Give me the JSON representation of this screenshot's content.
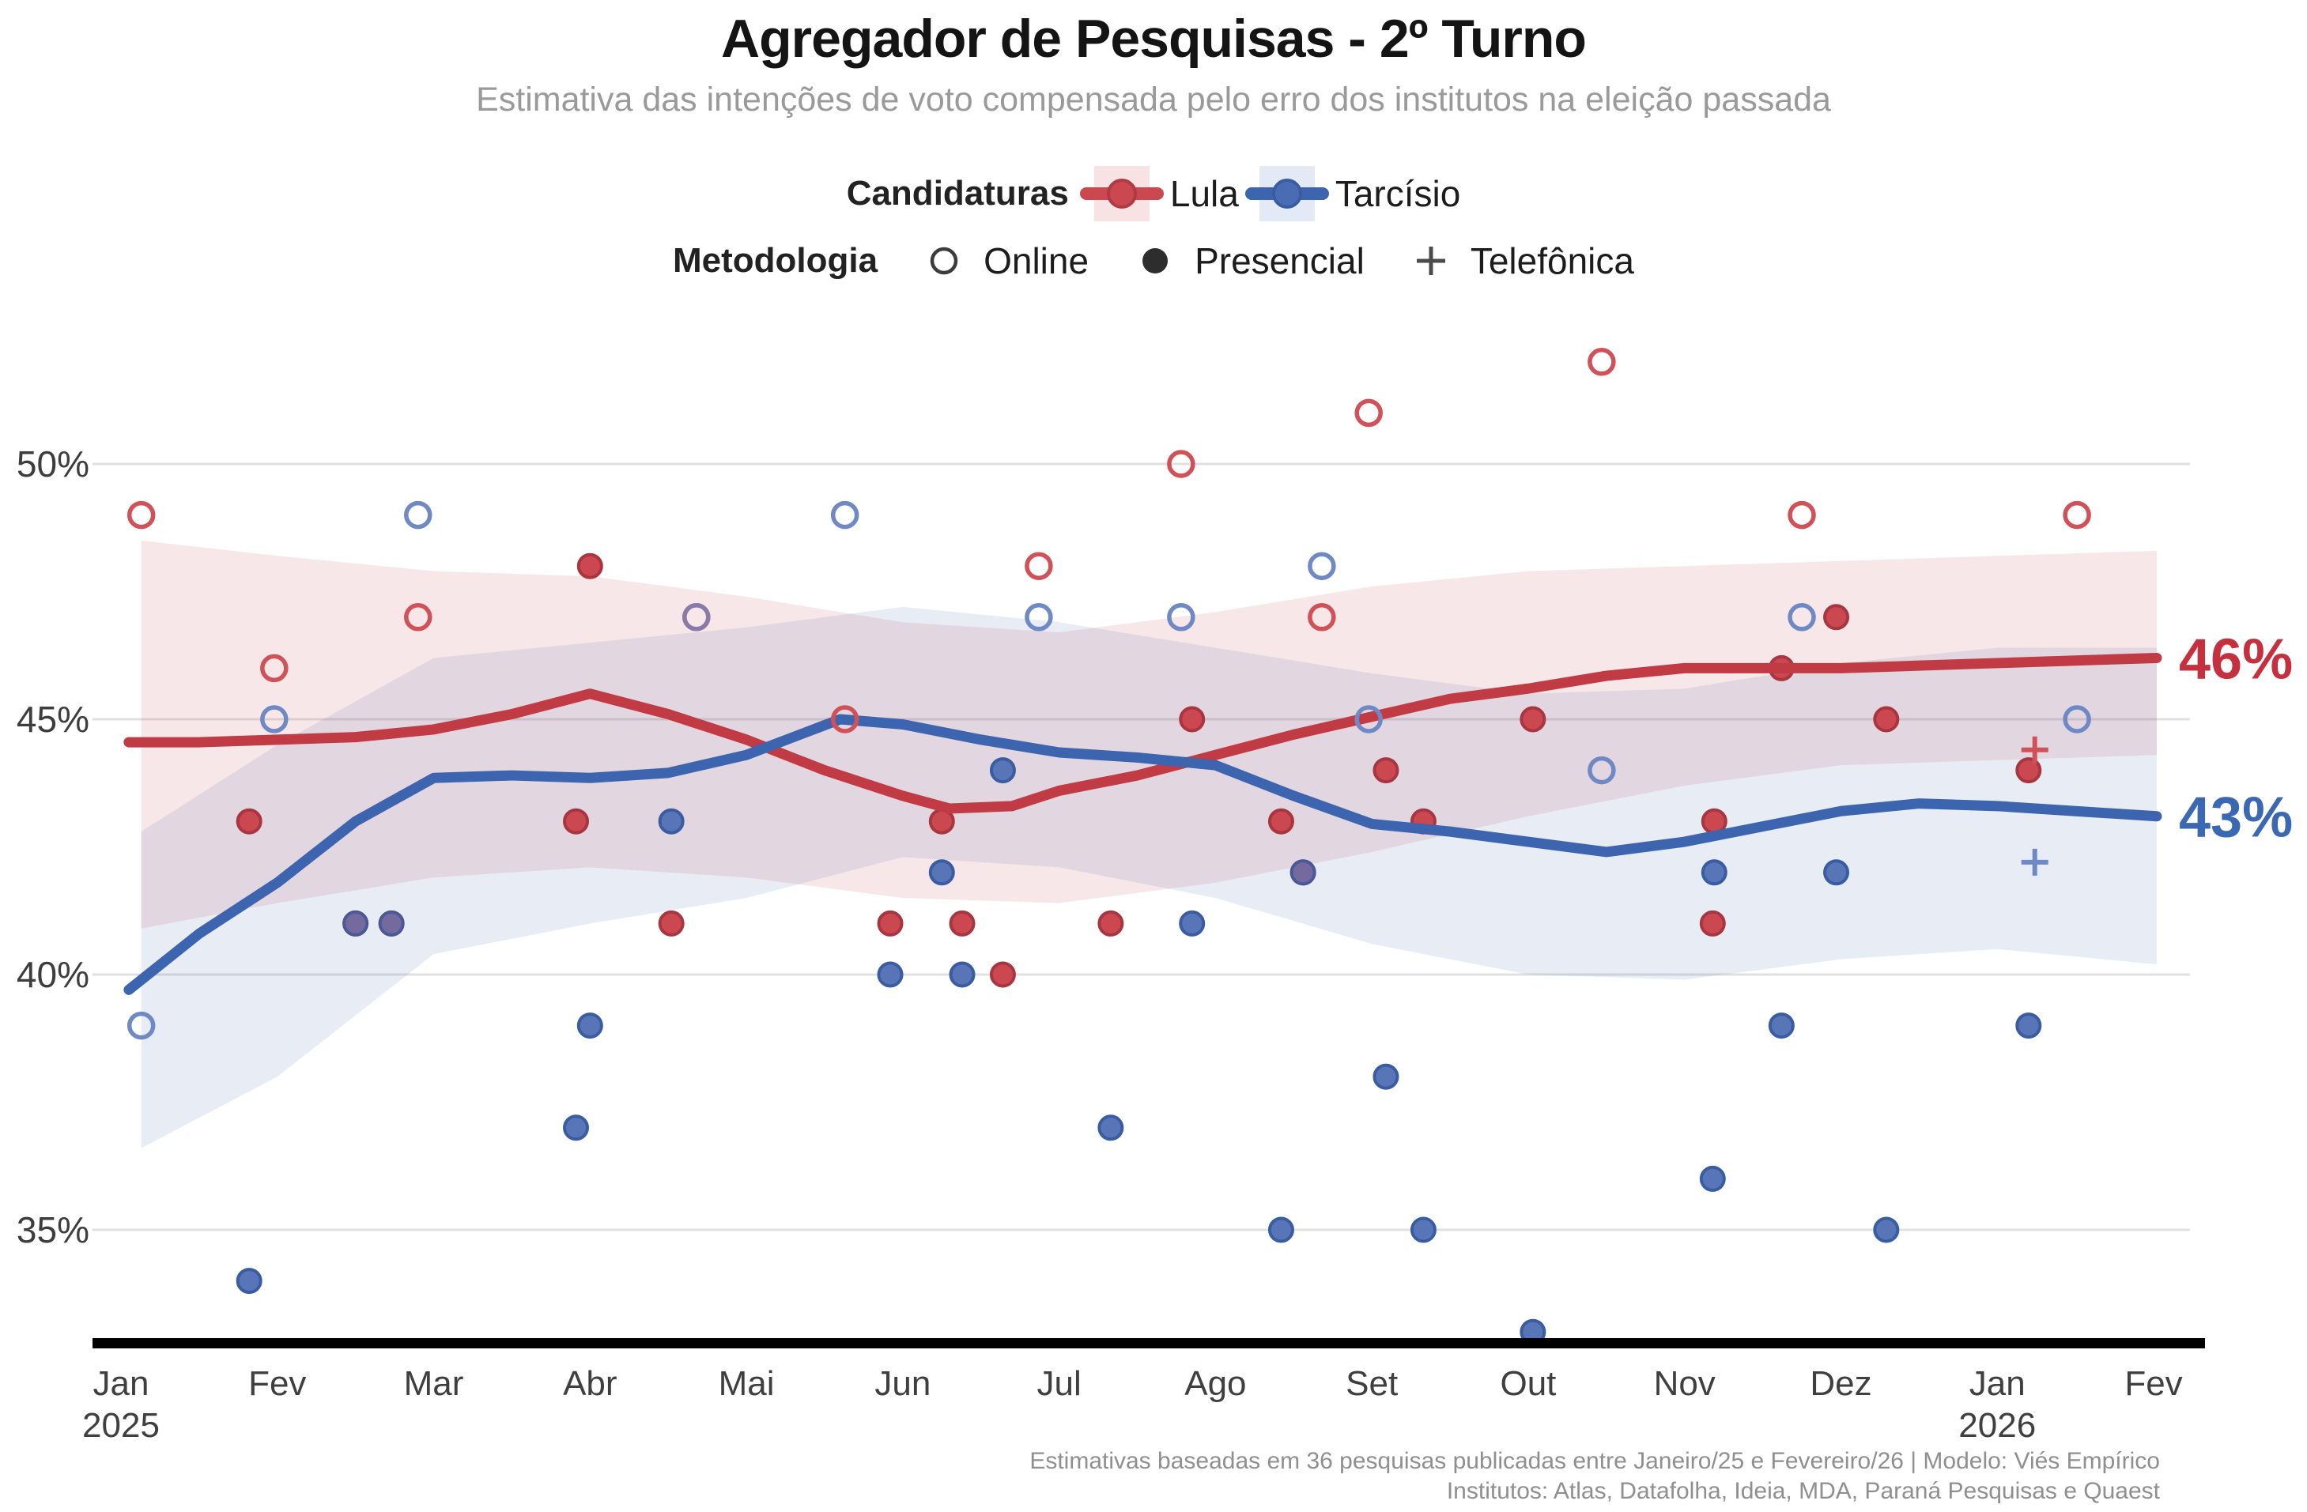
{
  "header": {
    "title": "Agregador de Pesquisas - 2º Turno",
    "subtitle": "Estimativa das intenções de voto compensada pelo erro dos institutos na eleição passada"
  },
  "legend": {
    "candidaturas_label": "Candidaturas",
    "candidates": [
      {
        "name": "Lula",
        "color": "#c13b44",
        "band": "#f8e3e4"
      },
      {
        "name": "Tarcísio",
        "color": "#3d64ae",
        "band": "#e4eaf5"
      }
    ],
    "metodologia_label": "Metodologia",
    "methods": [
      {
        "label": "Online",
        "marker": "open-circle"
      },
      {
        "label": "Presencial",
        "marker": "filled-circle"
      },
      {
        "label": "Telefônica",
        "marker": "plus"
      }
    ]
  },
  "footer": {
    "line1": "Estimativas baseadas em 36 pesquisas publicadas entre Janeiro/25 e Fevereiro/26 | Modelo: Viés Empírico",
    "line2": "Institutos: Atlas, Datafolha, Ideia, MDA, Paraná Pesquisas e Quaest"
  },
  "colors": {
    "grid": "#e0e0e0",
    "axis": "#000000",
    "tick_text": "#3d3d3d",
    "legend_icon": "#3c3c3c",
    "lula_line": "#c13b44",
    "lula_point_fill": "#cb4850",
    "lula_point_stroke": "#a83640",
    "lula_ring": "#d05158",
    "lula_band": "rgba(203,72,80,0.13)",
    "lula_label": "#c5303e",
    "tarcisio_line": "#3d64ae",
    "tarcisio_point_fill": "#5875b8",
    "tarcisio_point_stroke": "#3a5ca1",
    "tarcisio_ring": "#6e89c4",
    "tarcisio_band": "rgba(80,110,180,0.13)",
    "tarcisio_label": "#3a68b3"
  },
  "chart_data": {
    "type": "line+scatter",
    "title": "Agregador de Pesquisas - 2º Turno",
    "x_unit": "months since Jan/2025 (0 = Jan 2025, 13 = Fev 2026)",
    "x_ticks": [
      {
        "label": "Jan",
        "year": "2025"
      },
      {
        "label": "Fev"
      },
      {
        "label": "Mar"
      },
      {
        "label": "Abr"
      },
      {
        "label": "Mai"
      },
      {
        "label": "Jun"
      },
      {
        "label": "Jul"
      },
      {
        "label": "Ago"
      },
      {
        "label": "Set"
      },
      {
        "label": "Out"
      },
      {
        "label": "Nov"
      },
      {
        "label": "Dez"
      },
      {
        "label": "Jan",
        "year": "2026"
      },
      {
        "label": "Fev"
      }
    ],
    "y_ticks": [
      {
        "value": 50,
        "label": "50%"
      },
      {
        "value": 45,
        "label": "45%"
      },
      {
        "value": 40,
        "label": "40%"
      },
      {
        "value": 35,
        "label": "35%"
      }
    ],
    "ylim": [
      32.5,
      52.8
    ],
    "grid": true,
    "series": [
      {
        "name": "Lula",
        "end_label": "46%",
        "end_value": 46,
        "trend": [
          [
            0.05,
            44.55
          ],
          [
            0.5,
            44.55
          ],
          [
            1,
            44.6
          ],
          [
            1.5,
            44.65
          ],
          [
            2,
            44.8
          ],
          [
            2.5,
            45.1
          ],
          [
            3,
            45.5
          ],
          [
            3.5,
            45.1
          ],
          [
            4,
            44.6
          ],
          [
            4.5,
            44.0
          ],
          [
            5,
            43.5
          ],
          [
            5.3,
            43.25
          ],
          [
            5.7,
            43.3
          ],
          [
            6,
            43.6
          ],
          [
            6.5,
            43.9
          ],
          [
            7,
            44.3
          ],
          [
            7.5,
            44.7
          ],
          [
            8,
            45.05
          ],
          [
            8.5,
            45.4
          ],
          [
            9,
            45.6
          ],
          [
            9.5,
            45.85
          ],
          [
            10,
            46.0
          ],
          [
            10.5,
            46.0
          ],
          [
            11,
            46.0
          ],
          [
            11.5,
            46.05
          ],
          [
            12,
            46.1
          ],
          [
            12.5,
            46.15
          ],
          [
            13.02,
            46.2
          ]
        ],
        "band": [
          [
            0.13,
            48.5,
            40.9
          ],
          [
            1,
            48.2,
            41.4
          ],
          [
            2,
            47.9,
            41.9
          ],
          [
            3,
            47.8,
            42.1
          ],
          [
            4,
            47.4,
            41.9
          ],
          [
            5,
            46.9,
            41.5
          ],
          [
            6,
            46.7,
            41.4
          ],
          [
            7,
            47.1,
            41.8
          ],
          [
            8,
            47.6,
            42.4
          ],
          [
            9,
            47.9,
            43.1
          ],
          [
            10,
            48.0,
            43.7
          ],
          [
            11,
            48.1,
            44.1
          ],
          [
            12,
            48.2,
            44.2
          ],
          [
            13.02,
            48.3,
            44.3
          ]
        ]
      },
      {
        "name": "Tarcísio",
        "end_label": "43%",
        "end_value": 43,
        "trend": [
          [
            0.05,
            39.7
          ],
          [
            0.5,
            40.8
          ],
          [
            1,
            41.8
          ],
          [
            1.5,
            43.0
          ],
          [
            2,
            43.85
          ],
          [
            2.5,
            43.9
          ],
          [
            3,
            43.85
          ],
          [
            3.5,
            43.95
          ],
          [
            4,
            44.3
          ],
          [
            4.6,
            45.0
          ],
          [
            5,
            44.9
          ],
          [
            5.5,
            44.6
          ],
          [
            6,
            44.35
          ],
          [
            6.5,
            44.25
          ],
          [
            7,
            44.1
          ],
          [
            7.5,
            43.5
          ],
          [
            8,
            42.95
          ],
          [
            8.5,
            42.8
          ],
          [
            9,
            42.6
          ],
          [
            9.5,
            42.4
          ],
          [
            10,
            42.6
          ],
          [
            10.5,
            42.9
          ],
          [
            11,
            43.2
          ],
          [
            11.5,
            43.35
          ],
          [
            12,
            43.3
          ],
          [
            12.5,
            43.2
          ],
          [
            13.02,
            43.1
          ]
        ],
        "band": [
          [
            0.13,
            42.8,
            36.6
          ],
          [
            1,
            44.5,
            38.0
          ],
          [
            2,
            46.2,
            40.4
          ],
          [
            3,
            46.5,
            41.0
          ],
          [
            4,
            46.8,
            41.5
          ],
          [
            5,
            47.2,
            42.3
          ],
          [
            6,
            46.9,
            42.1
          ],
          [
            7,
            46.4,
            41.5
          ],
          [
            8,
            45.9,
            40.6
          ],
          [
            9,
            45.5,
            40.0
          ],
          [
            10,
            45.6,
            39.9
          ],
          [
            11,
            46.1,
            40.3
          ],
          [
            12,
            46.4,
            40.5
          ],
          [
            13.02,
            46.4,
            40.2
          ]
        ]
      }
    ],
    "polls": [
      {
        "x": 0.13,
        "method": "online",
        "lula": 49,
        "tarcisio": 39
      },
      {
        "x": 0.82,
        "method": "presencial",
        "lula": 43,
        "tarcisio": 34
      },
      {
        "x": 0.98,
        "method": "online",
        "lula": 46,
        "tarcisio": 45
      },
      {
        "x": 1.5,
        "method": "presencial",
        "lula": 41,
        "tarcisio": 41
      },
      {
        "x": 1.73,
        "method": "presencial",
        "lula": 41,
        "tarcisio": 41
      },
      {
        "x": 1.9,
        "method": "online",
        "lula": 47,
        "tarcisio": 49
      },
      {
        "x": 2.91,
        "method": "presencial",
        "lula": 43,
        "tarcisio": 37
      },
      {
        "x": 3.0,
        "method": "presencial",
        "lula": 48,
        "tarcisio": 39
      },
      {
        "x": 3.52,
        "method": "presencial",
        "lula": 41,
        "tarcisio": 43
      },
      {
        "x": 3.68,
        "method": "online",
        "lula": 47,
        "tarcisio": 47
      },
      {
        "x": 4.63,
        "method": "online",
        "lula": 45,
        "tarcisio": 49
      },
      {
        "x": 4.92,
        "method": "presencial",
        "lula": 41,
        "tarcisio": 40
      },
      {
        "x": 5.25,
        "method": "presencial",
        "lula": 43,
        "tarcisio": 42
      },
      {
        "x": 5.38,
        "method": "presencial",
        "lula": 41,
        "tarcisio": 40
      },
      {
        "x": 5.64,
        "method": "presencial",
        "lula": 40,
        "tarcisio": 44
      },
      {
        "x": 5.87,
        "method": "online",
        "lula": 48,
        "tarcisio": 47
      },
      {
        "x": 6.33,
        "method": "presencial",
        "lula": 41,
        "tarcisio": 37
      },
      {
        "x": 6.78,
        "method": "online",
        "lula": 50,
        "tarcisio": 47
      },
      {
        "x": 6.85,
        "method": "presencial",
        "lula": 45,
        "tarcisio": 41
      },
      {
        "x": 7.42,
        "method": "presencial",
        "lula": 43,
        "tarcisio": 35
      },
      {
        "x": 7.56,
        "method": "presencial",
        "lula": 42,
        "tarcisio": 42
      },
      {
        "x": 7.68,
        "method": "online",
        "lula": 47,
        "tarcisio": 48
      },
      {
        "x": 7.98,
        "method": "online",
        "lula": 51,
        "tarcisio": 45
      },
      {
        "x": 8.09,
        "method": "presencial",
        "lula": 44,
        "tarcisio": 38
      },
      {
        "x": 8.33,
        "method": "presencial",
        "lula": 43,
        "tarcisio": 35
      },
      {
        "x": 9.03,
        "method": "presencial",
        "lula": 45,
        "tarcisio": 33
      },
      {
        "x": 9.47,
        "method": "online",
        "lula": 52,
        "tarcisio": 44
      },
      {
        "x": 10.18,
        "method": "presencial",
        "lula": 41,
        "tarcisio": 36
      },
      {
        "x": 10.19,
        "method": "presencial",
        "lula": 43,
        "tarcisio": 42
      },
      {
        "x": 10.62,
        "method": "presencial",
        "lula": 46,
        "tarcisio": 39
      },
      {
        "x": 10.75,
        "method": "online",
        "lula": 49,
        "tarcisio": 47
      },
      {
        "x": 10.97,
        "method": "presencial",
        "lula": 47,
        "tarcisio": 42
      },
      {
        "x": 11.29,
        "method": "presencial",
        "lula": 45,
        "tarcisio": 35
      },
      {
        "x": 12.2,
        "method": "presencial",
        "lula": 44,
        "tarcisio": 39
      },
      {
        "x": 12.24,
        "method": "telefonica",
        "lula": 44.4,
        "tarcisio": 42.2
      },
      {
        "x": 12.51,
        "method": "online",
        "lula": 49,
        "tarcisio": 45
      }
    ]
  }
}
